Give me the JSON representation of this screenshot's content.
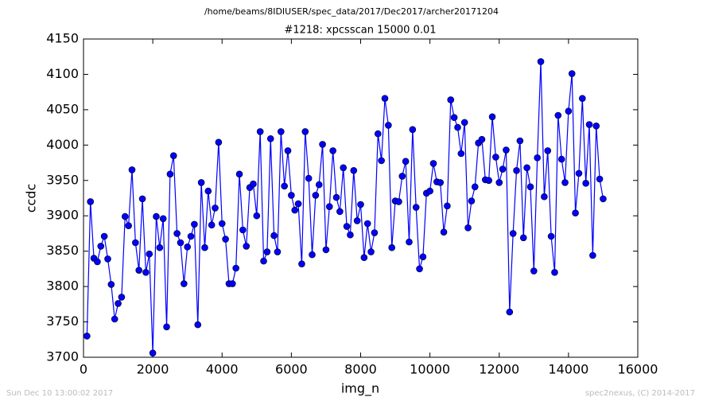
{
  "chart_data": {
    "type": "line",
    "suptitle": "/home/beams/8IDIUSER/spec_data/2017/Dec2017/archer20171204",
    "title": "#1218: xpcsscan 15000 0.01",
    "xlabel": "img_n",
    "ylabel": "ccdc",
    "footer_left": "Sun Dec 10 13:00:02 2017",
    "footer_right": "spec2nexus, (C) 2014-2017",
    "x": [
      100,
      200,
      300,
      400,
      500,
      600,
      700,
      800,
      900,
      1000,
      1100,
      1200,
      1300,
      1400,
      1500,
      1600,
      1700,
      1800,
      1900,
      2000,
      2100,
      2200,
      2300,
      2400,
      2500,
      2600,
      2700,
      2800,
      2900,
      3000,
      3100,
      3200,
      3300,
      3400,
      3500,
      3600,
      3700,
      3800,
      3900,
      4000,
      4100,
      4200,
      4300,
      4400,
      4500,
      4600,
      4700,
      4800,
      4900,
      5000,
      5100,
      5200,
      5300,
      5400,
      5500,
      5600,
      5700,
      5800,
      5900,
      6000,
      6100,
      6200,
      6300,
      6400,
      6500,
      6600,
      6700,
      6800,
      6900,
      7000,
      7100,
      7200,
      7300,
      7400,
      7500,
      7600,
      7700,
      7800,
      7900,
      8000,
      8100,
      8200,
      8300,
      8400,
      8500,
      8600,
      8700,
      8800,
      8900,
      9000,
      9100,
      9200,
      9300,
      9400,
      9500,
      9600,
      9700,
      9800,
      9900,
      10000,
      10100,
      10200,
      10300,
      10400,
      10500,
      10600,
      10700,
      10800,
      10900,
      11000,
      11100,
      11200,
      11300,
      11400,
      11500,
      11600,
      11700,
      11800,
      11900,
      12000,
      12100,
      12200,
      12300,
      12400,
      12500,
      12600,
      12700,
      12800,
      12900,
      13000,
      13100,
      13200,
      13300,
      13400,
      13500,
      13600,
      13700,
      13800,
      13900,
      14000,
      14100,
      14200,
      14300,
      14400,
      14500,
      14600,
      14700,
      14800,
      14900,
      15000
    ],
    "series": [
      {
        "name": "ccdc",
        "color": "#0000ff",
        "values": [
          3730,
          3920,
          3840,
          3835,
          3857,
          3871,
          3839,
          3803,
          3754,
          3776,
          3785,
          3899,
          3886,
          3965,
          3862,
          3823,
          3924,
          3820,
          3846,
          3706,
          3899,
          3855,
          3896,
          3743,
          3959,
          3985,
          3875,
          3862,
          3804,
          3856,
          3871,
          3888,
          3746,
          3947,
          3855,
          3935,
          3887,
          3911,
          4004,
          3889,
          3867,
          3804,
          3804,
          3826,
          3959,
          3880,
          3857,
          3940,
          3945,
          3900,
          4019,
          3836,
          3849,
          4009,
          3872,
          3849,
          4019,
          3942,
          3992,
          3929,
          3908,
          3917,
          3832,
          4019,
          3953,
          3845,
          3929,
          3944,
          4001,
          3852,
          3913,
          3992,
          3926,
          3906,
          3968,
          3885,
          3873,
          3964,
          3893,
          3916,
          3841,
          3889,
          3849,
          3876,
          4016,
          3978,
          4066,
          4028,
          3855,
          3921,
          3920,
          3956,
          3977,
          3863,
          4022,
          3912,
          3825,
          3842,
          3932,
          3935,
          3974,
          3948,
          3947,
          3877,
          3914,
          4064,
          4039,
          4025,
          3988,
          4032,
          3883,
          3921,
          3941,
          4003,
          4008,
          3951,
          3950,
          4040,
          3983,
          3947,
          3966,
          3993,
          3764,
          3875,
          3964,
          4006,
          3869,
          3968,
          3941,
          3822,
          3982,
          4118,
          3927,
          3992,
          3871,
          3820,
          4042,
          3980,
          3947,
          4048,
          4101,
          3904,
          3960,
          4066,
          3946,
          4029,
          3844,
          4027,
          3952,
          3924
        ]
      }
    ],
    "xlim": [
      0,
      16000
    ],
    "xticks": [
      0,
      2000,
      4000,
      6000,
      8000,
      10000,
      12000,
      14000,
      16000
    ],
    "ylim": [
      3700,
      4150
    ],
    "yticks": [
      3700,
      3750,
      3800,
      3850,
      3900,
      3950,
      4000,
      4050,
      4100,
      4150
    ],
    "grid": false
  }
}
